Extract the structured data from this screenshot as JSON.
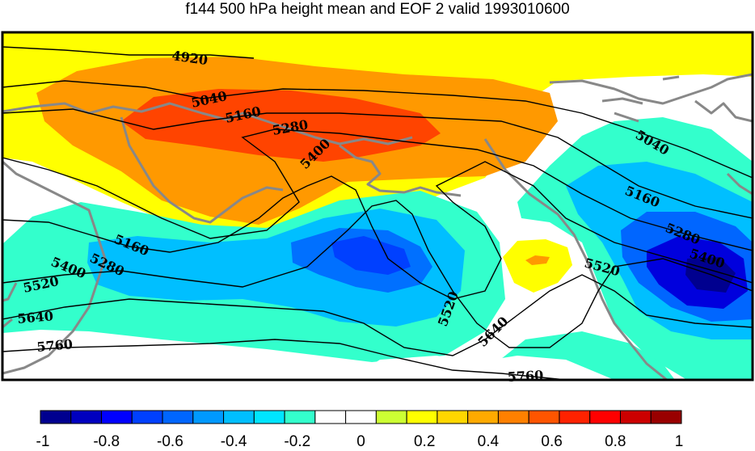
{
  "title": "f144 500 hPa height mean and EOF 2 valid 1993010600",
  "contour_labels": [
    "4920",
    "5040",
    "5160",
    "5280",
    "5400",
    "5040",
    "5160",
    "5280",
    "5400",
    "5160",
    "5280",
    "5400",
    "5520",
    "5640",
    "5760",
    "5520",
    "5640",
    "5520",
    "5760"
  ],
  "colorbar": {
    "colors": [
      "#00008f",
      "#0000bf",
      "#0000ff",
      "#0040ff",
      "#0066ff",
      "#0099ff",
      "#00bfff",
      "#00e5ff",
      "#33ffcc",
      "#ffffff",
      "#ffffff",
      "#ccff33",
      "#ffff00",
      "#ffd700",
      "#ffaa00",
      "#ff8000",
      "#ff5500",
      "#ff2200",
      "#ff0000",
      "#cc0000",
      "#990000"
    ],
    "tick_labels": [
      "-1",
      "-0.8",
      "-0.6",
      "-0.4",
      "-0.2",
      "0",
      "0.2",
      "0.4",
      "0.6",
      "0.8",
      "1"
    ]
  }
}
